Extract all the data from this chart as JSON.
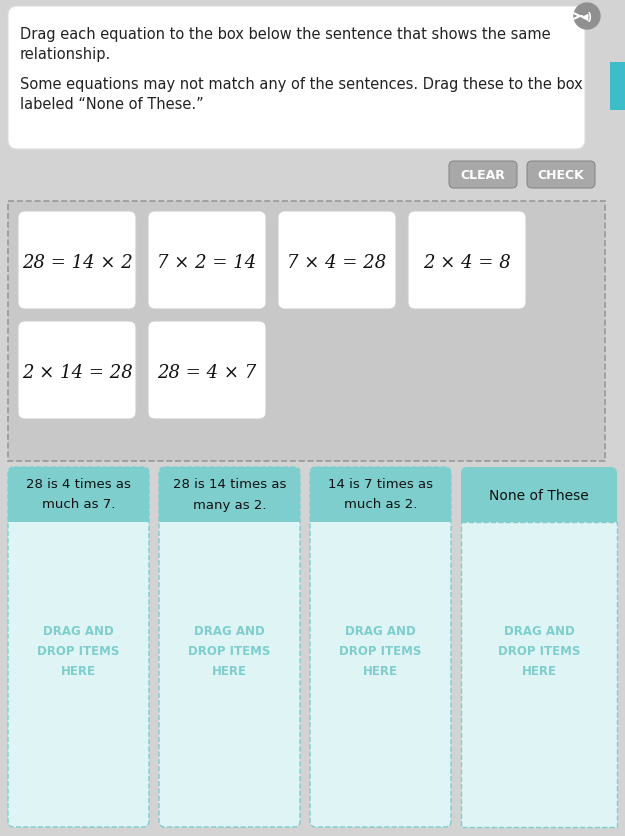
{
  "bg_color": "#d3d3d3",
  "white_panel_bg": "#ffffff",
  "teal_header_bg": "#7ecece",
  "light_teal_bg": "#dff4f4",
  "dashed_border_color": "#7ecece",
  "card_area_bg": "#cccccc",
  "card_area_border": "#aaaaaa",
  "text_color_dark": "#222222",
  "text_color_teal": "#7ecece",
  "button_bg": "#a8a8a8",
  "button_text": "#ffffff",
  "speaker_bg": "#909090",
  "instructions_line1": "Drag each equation to the box below the sentence that shows the same",
  "instructions_line2": "relationship.",
  "instructions_line3": "Some equations may not match any of the sentences. Drag these to the box",
  "instructions_line4": "labeled “None of These.”",
  "equations": [
    "28 = 14 × 2",
    "7 × 2 = 14",
    "7 × 4 = 28",
    "2 × 4 = 8",
    "2 × 14 = 28",
    "28 = 4 × 7"
  ],
  "columns": [
    {
      "header_line1": "28 is 4 times as",
      "header_line2": "much as 7.",
      "drop_text": "DRAG AND\nDROP ITEMS\nHERE",
      "solid_header": true
    },
    {
      "header_line1": "28 is 14 times as",
      "header_line2": "many as 2.",
      "drop_text": "DRAG AND\nDROP ITEMS\nHERE",
      "solid_header": true
    },
    {
      "header_line1": "14 is 7 times as",
      "header_line2": "much as 2.",
      "drop_text": "DRAG AND\nDROP ITEMS\nHERE",
      "solid_header": true
    },
    {
      "header_line1": "None of These",
      "header_line2": "",
      "drop_text": "DRAG AND\nDROP ITEMS\nHERE",
      "solid_header": false
    }
  ]
}
